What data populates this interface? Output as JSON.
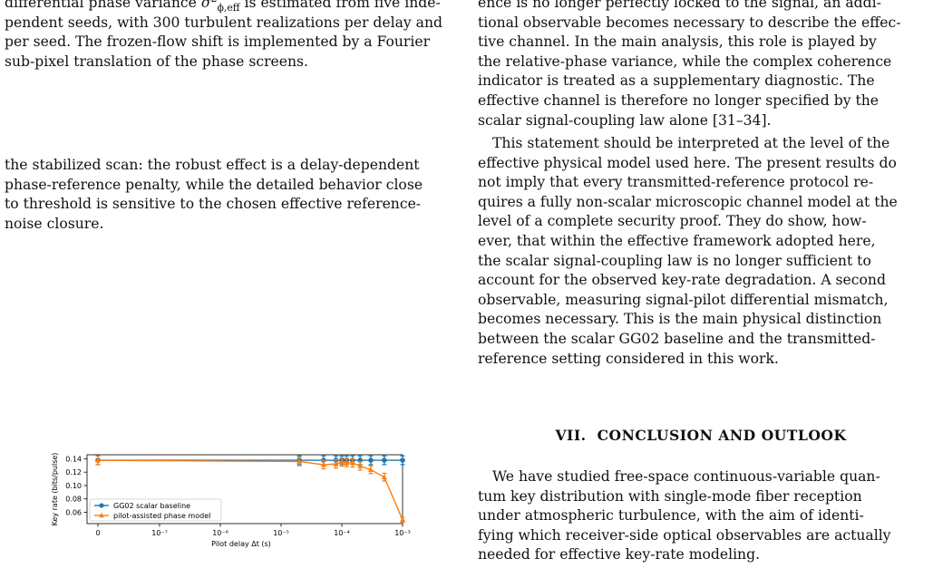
{
  "left": {
    "para1": {
      "lead": "differential phase variance ",
      "symbol": "σ",
      "sup": "2",
      "sub": "ϕ,eff",
      "line1_rest": " is estimated from five inde-",
      "line2": "pendent seeds, with 300 turbulent realizations per delay and",
      "line3": "per seed. The frozen-flow shift is implemented by a Fourier",
      "line4": "sub-pixel translation of the phase screens."
    },
    "para2": [
      "the stabilized scan: the robust effect is a delay-dependent",
      "phase-reference penalty, while the detailed behavior close",
      "to threshold is sensitive to the chosen effective reference-",
      "noise closure."
    ]
  },
  "right": {
    "para1": [
      "ence is no longer perfectly locked to the signal, an addi-",
      "tional observable becomes necessary to describe the effec-",
      "tive channel. In the main analysis, this role is played by",
      "the relative-phase variance, while the complex coherence",
      "indicator is treated as a supplementary diagnostic. The",
      "effective channel is therefore no longer specified by the",
      "scalar signal-coupling law alone [31–34]."
    ],
    "para2": [
      "This statement should be interpreted at the level of the",
      "effective physical model used here. The present results do",
      "not imply that every transmitted-reference protocol re-",
      "quires a fully non-scalar microscopic channel model at the",
      "level of a complete security proof. They do show, how-",
      "ever, that within the effective framework adopted here,",
      "the scalar signal-coupling law is no longer sufficient to",
      "account for the observed key-rate degradation. A second",
      "observable, measuring signal-pilot differential mismatch,",
      "becomes necessary. This is the main physical distinction",
      "between the scalar GG02 baseline and the transmitted-",
      "reference setting considered in this work."
    ],
    "section_number": "VII.",
    "section_title": "CONCLUSION AND OUTLOOK",
    "para3": [
      "We have studied free-space continuous-variable quan-",
      "tum key distribution with single-mode fiber reception",
      "under atmospheric turbulence, with the aim of identi-",
      "fying which receiver-side optical observables are actually",
      "needed for effective key-rate modeling."
    ]
  },
  "chart_data": {
    "type": "line",
    "xlabel": "Pilot delay Δt (s)",
    "ylabel": "Key rate (bits/pulse)",
    "x_scale": "symlog",
    "x_ticks": [
      "0",
      "10⁻⁷",
      "10⁻⁶",
      "10⁻⁵",
      "10⁻⁴",
      "10⁻³"
    ],
    "y_ticks": [
      "0.06",
      "0.08",
      "0.10",
      "0.12",
      "0.14"
    ],
    "ylim": [
      0.043,
      0.146
    ],
    "legend_position": "lower-left",
    "x": [
      0,
      2e-05,
      5e-05,
      8e-05,
      0.0001,
      0.00012,
      0.00015,
      0.0002,
      0.0003,
      0.0005,
      0.001
    ],
    "series": [
      {
        "name": "GG02 scalar baseline",
        "color": "#1f77b4",
        "marker": "circle",
        "values": [
          0.1378,
          0.1378,
          0.1378,
          0.1378,
          0.1378,
          0.1378,
          0.1378,
          0.1378,
          0.1378,
          0.1378,
          0.1378
        ],
        "errors": [
          0.0065,
          0.0065,
          0.0065,
          0.0065,
          0.0065,
          0.0065,
          0.0065,
          0.0065,
          0.0065,
          0.0065,
          0.0065
        ]
      },
      {
        "name": "pilot-assisted phase model",
        "color": "#ff7f0e",
        "marker": "triangle",
        "values": [
          0.1376,
          0.1359,
          0.1311,
          0.1322,
          0.1351,
          0.1344,
          0.1338,
          0.1292,
          0.1236,
          0.1125,
          0.0487
        ],
        "errors": [
          0.0065,
          0.0062,
          0.0062,
          0.0062,
          0.0062,
          0.0062,
          0.0062,
          0.0062,
          0.0058,
          0.0058,
          0.0035
        ]
      }
    ]
  }
}
